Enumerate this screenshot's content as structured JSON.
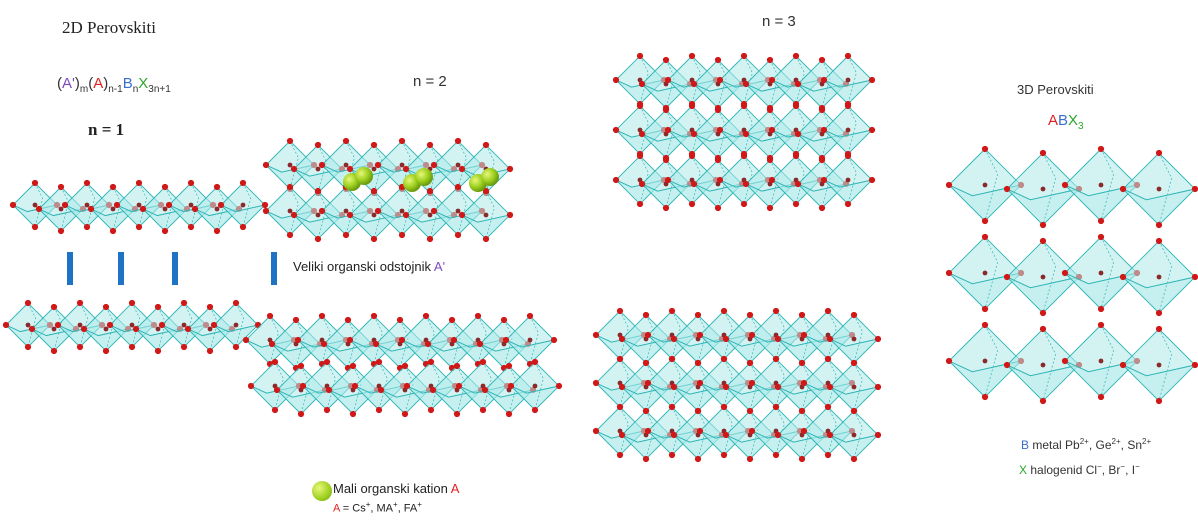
{
  "title_2d": "2D Perovskiti",
  "formula": {
    "p1": "(",
    "a1": "A'",
    "p2": ")",
    "m": "m",
    "p3": "(",
    "a2": "A",
    "p4": ")",
    "sub1": "n-1",
    "b": "B",
    "sub2": "n",
    "x": "X",
    "sub3": "3n+1"
  },
  "label_n1": "n = 1",
  "label_n2": "n = 2",
  "label_n3": "n = 3",
  "title_3d": "3D Perovskiti",
  "abx": {
    "a": "A",
    "b": "B",
    "x": "X",
    "sub": "3"
  },
  "spacer_label": {
    "text": "Veliki organski odstojnik ",
    "sym": "A'"
  },
  "small_cation": {
    "text": "Mali organski kation ",
    "sym": "A"
  },
  "a_definition": {
    "lhs": "A",
    "eq": " = Cs",
    "s1": "+",
    "m": ", MA",
    "s2": "+",
    "f": ", FA",
    "s3": "+"
  },
  "b_definition": {
    "lhs": "B",
    "t": " metal Pb",
    "s1": "2+",
    "g": ", Ge",
    "s2": "2+",
    "sn": ", Sn",
    "s3": "2+"
  },
  "x_definition": {
    "lhs": "X",
    "t": " halogenid Cl",
    "s1": "−",
    "br": ", Br",
    "s2": "−",
    "i": ", I",
    "s3": "−"
  },
  "colors": {
    "octahedron_fill": "#aeeaea",
    "octahedron_edge": "#2fb5b5",
    "atom": "#d01818",
    "b_atom": "#8a2a2a",
    "spacer": "#1f73c4",
    "cation": "#9ccf1e"
  }
}
